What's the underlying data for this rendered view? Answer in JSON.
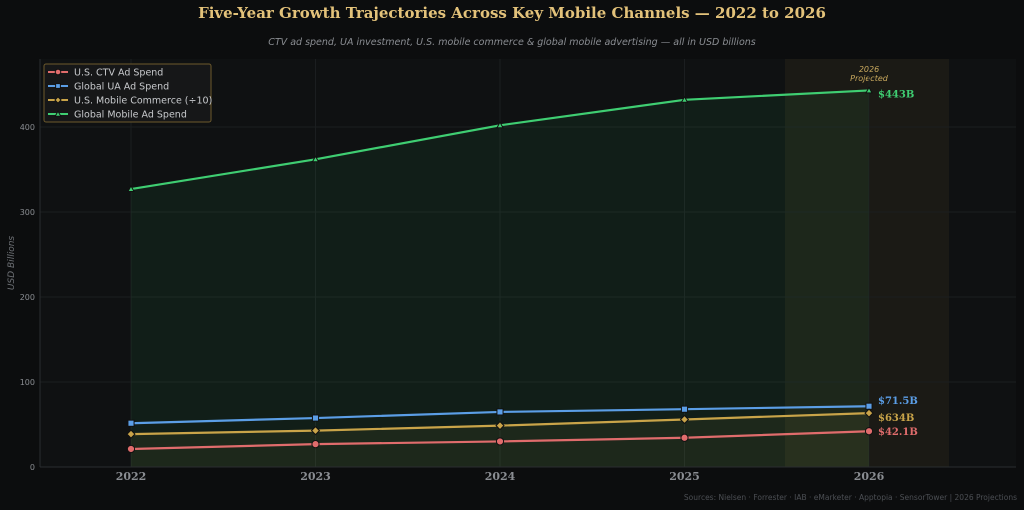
{
  "title": "Five-Year Growth Trajectories Across Key Mobile Channels — 2022 to 2026",
  "subtitle": "CTV ad spend, UA investment, U.S. mobile commerce & global mobile advertising — all in USD billions",
  "footer": "Sources: Nielsen · Forrester · IAB · eMarketer · Apptopia · SensorTower  |  2026 Projections",
  "colors": {
    "background": "#0c0d0e",
    "plot_background": "#0f1112",
    "grid": "#1b1e20",
    "axis_text": "#8a8d92",
    "projection_band": "#1b1a15",
    "projection_text": "#c9a95e"
  },
  "chart_data": {
    "type": "line",
    "title": "Five-Year Growth Trajectories Across Key Mobile Channels — 2022 to 2026",
    "subtitle": "CTV ad spend, UA investment, U.S. mobile commerce & global mobile advertising — all in USD billions",
    "xlabel": "",
    "ylabel": "USD Billions",
    "categories": [
      "2022",
      "2023",
      "2024",
      "2025",
      "2026"
    ],
    "ylim": [
      0,
      480
    ],
    "yticks": [
      0,
      100,
      200,
      300,
      400
    ],
    "grid": true,
    "legend_position": "top-left",
    "projection": {
      "category": "2026",
      "label_line1": "2026",
      "label_line2": "Projected"
    },
    "series": [
      {
        "name": "U.S. CTV Ad Spend",
        "values": [
          21.2,
          26.9,
          30.1,
          34.4,
          42.1
        ],
        "color": "#e06c6c",
        "marker": "circle",
        "end_label": "$42.1B",
        "fill": false
      },
      {
        "name": "Global UA Ad Spend",
        "values": [
          51.5,
          57.6,
          64.8,
          68.0,
          71.5
        ],
        "color": "#5b9ee6",
        "marker": "square",
        "end_label": "$71.5B",
        "fill": false
      },
      {
        "name": "U.S. Mobile Commerce (÷10)",
        "values": [
          38.7,
          42.8,
          48.7,
          55.9,
          63.4
        ],
        "color": "#c9a449",
        "marker": "diamond",
        "end_label": "$634B",
        "fill": true
      },
      {
        "name": "Global Mobile Ad Spend",
        "values": [
          327.0,
          362.0,
          402.0,
          432.0,
          443.0
        ],
        "color": "#3fce72",
        "marker": "triangle",
        "end_label": "$443B",
        "fill": true
      }
    ]
  }
}
